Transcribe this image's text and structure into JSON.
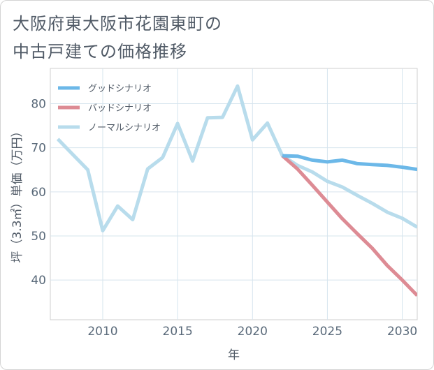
{
  "title": {
    "line1": "大阪府東大阪市花園東町の",
    "line2": "中古戸建ての価格推移"
  },
  "chart_data": {
    "type": "line",
    "title": "大阪府東大阪市花園東町の中古戸建ての価格推移",
    "xlabel": "年",
    "ylabel": "坪（3.3㎡）単価（万円）",
    "xlim": [
      2006.5,
      2031
    ],
    "ylim": [
      31,
      88
    ],
    "xticks": [
      2010,
      2015,
      2020,
      2025,
      2030
    ],
    "yticks": [
      40,
      50,
      60,
      70,
      80
    ],
    "grid": true,
    "legend_position": "top-left",
    "series": [
      {
        "name": "グッドシナリオ",
        "color": "#6cb8e8",
        "x": [
          2022,
          2023,
          2024,
          2025,
          2026,
          2027,
          2028,
          2029,
          2030,
          2031
        ],
        "values": [
          68.2,
          68.1,
          67.2,
          66.8,
          67.2,
          66.4,
          66.2,
          66.0,
          65.6,
          65.1
        ]
      },
      {
        "name": "バッドシナリオ",
        "color": "#dd8b94",
        "x": [
          2022,
          2023,
          2024,
          2025,
          2026,
          2027,
          2028,
          2029,
          2030,
          2031
        ],
        "values": [
          68.2,
          65.2,
          61.5,
          57.7,
          53.9,
          50.5,
          47.2,
          43.3,
          40.0,
          36.5
        ]
      },
      {
        "name": "ノーマルシナリオ",
        "color": "#b8dcec",
        "x": [
          2007,
          2008,
          2009,
          2010,
          2011,
          2012,
          2013,
          2014,
          2015,
          2016,
          2017,
          2018,
          2019,
          2020,
          2021,
          2022,
          2023,
          2024,
          2025,
          2026,
          2027,
          2028,
          2029,
          2030,
          2031
        ],
        "values": [
          72.0,
          68.5,
          65.0,
          51.2,
          56.8,
          53.7,
          65.2,
          67.8,
          75.5,
          67.0,
          76.8,
          76.9,
          84.0,
          71.8,
          75.6,
          68.2,
          66.0,
          64.5,
          62.4,
          61.1,
          59.2,
          57.4,
          55.4,
          54.0,
          52.0
        ]
      }
    ]
  }
}
